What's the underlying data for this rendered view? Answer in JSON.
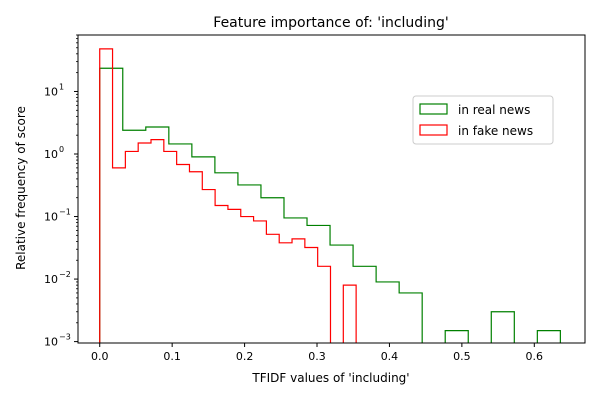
{
  "chart_data": {
    "type": "histogram",
    "title": "Feature importance of: 'including'",
    "xlabel": "TFIDF values of 'including'",
    "ylabel": "Relative frequency of score",
    "yscale": "log",
    "xlim": [
      -0.03,
      0.67
    ],
    "ylim": [
      0.00095,
      80
    ],
    "xticks": [
      0.0,
      0.1,
      0.2,
      0.3,
      0.4,
      0.5,
      0.6
    ],
    "xtick_labels": [
      "0.0",
      "0.1",
      "0.2",
      "0.3",
      "0.4",
      "0.5",
      "0.6"
    ],
    "yticks": [
      0.001,
      0.01,
      0.1,
      1,
      10
    ],
    "ytick_labels": [
      {
        "base": "10",
        "exp": "−3"
      },
      {
        "base": "10",
        "exp": "−2"
      },
      {
        "base": "10",
        "exp": "−1"
      },
      {
        "base": "10",
        "exp": "0"
      },
      {
        "base": "10",
        "exp": "1"
      }
    ],
    "legend_position": "right",
    "series": [
      {
        "name": "in real news",
        "color": "#008000",
        "edges": [
          0.0,
          0.0318,
          0.0636,
          0.0954,
          0.1272,
          0.159,
          0.1908,
          0.2226,
          0.2544,
          0.2862,
          0.318,
          0.3498,
          0.3816,
          0.4134,
          0.4452,
          0.477,
          0.5088,
          0.5406,
          0.5724,
          0.6042,
          0.636
        ],
        "values": [
          23.5,
          2.4,
          2.7,
          1.45,
          0.9,
          0.5,
          0.32,
          0.2,
          0.095,
          0.072,
          0.035,
          0.016,
          0.009,
          0.006,
          0.0,
          0.0015,
          0.0,
          0.003,
          0.0,
          0.0015
        ]
      },
      {
        "name": "in fake news",
        "color": "#ff0000",
        "edges": [
          0.0,
          0.0177,
          0.0354,
          0.0531,
          0.0708,
          0.0885,
          0.1062,
          0.1239,
          0.1416,
          0.1593,
          0.177,
          0.1947,
          0.2124,
          0.2301,
          0.2478,
          0.2655,
          0.2832,
          0.3009,
          0.3186,
          0.3363,
          0.354
        ],
        "values": [
          48.0,
          0.6,
          1.1,
          1.5,
          1.7,
          1.1,
          0.68,
          0.52,
          0.27,
          0.15,
          0.13,
          0.1,
          0.085,
          0.052,
          0.038,
          0.044,
          0.032,
          0.016,
          0.0,
          0.008
        ]
      }
    ]
  }
}
